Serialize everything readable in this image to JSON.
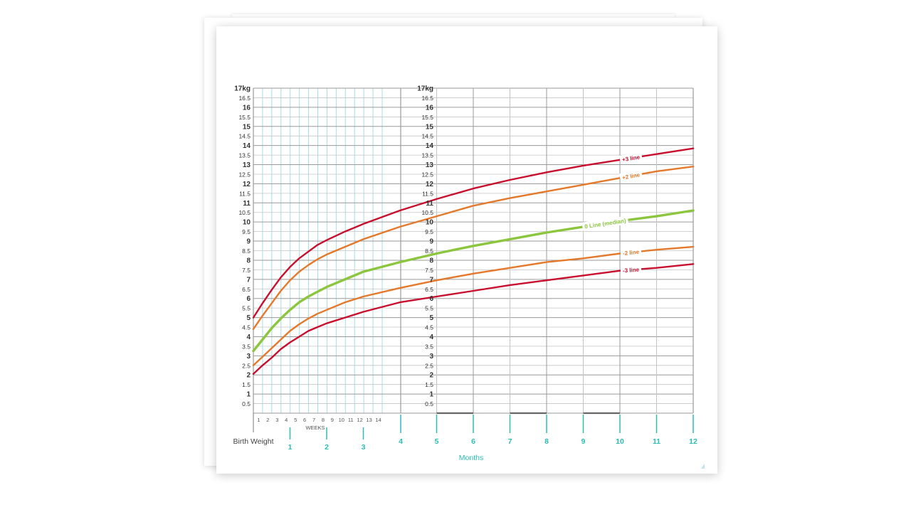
{
  "chart_data": {
    "type": "line",
    "x_unit_labels": {
      "birth": "Birth Weight",
      "weeks_title": "WEEKS",
      "months_title": "Months"
    },
    "week_ticks": [
      "1",
      "2",
      "3",
      "4",
      "5",
      "6",
      "7",
      "8",
      "9",
      "10",
      "11",
      "12",
      "13",
      "14"
    ],
    "month_ticks": [
      "1",
      "2",
      "3",
      "4",
      "5",
      "6",
      "7",
      "8",
      "9",
      "10",
      "11",
      "12"
    ],
    "y_ticks_left": [
      "17kg",
      "16.5",
      "16",
      "15.5",
      "15",
      "14.5",
      "14",
      "13.5",
      "13",
      "12.5",
      "12",
      "11.5",
      "11",
      "10.5",
      "10",
      "9.5",
      "9",
      "8.5",
      "8",
      "7.5",
      "7",
      "6.5",
      "6",
      "5.5",
      "5",
      "4.5",
      "4",
      "3.5",
      "3",
      "2.5",
      "2",
      "1.5",
      "1",
      "0.5"
    ],
    "y_ticks_right": [
      "17kg",
      "16.5",
      "16",
      "15.5",
      "15",
      "14.5",
      "14",
      "13.5",
      "13",
      "12.5",
      "12",
      "11.5",
      "11",
      "10.5",
      "10",
      "9.5",
      "9",
      "8.5",
      "8",
      "7.5",
      "7",
      "6.5",
      "6",
      "5.5",
      "5",
      "4.5",
      "4",
      "3.5",
      "3",
      "2.5",
      "2",
      "1.5",
      "1",
      "0.5"
    ],
    "ylim": [
      0,
      17
    ],
    "xlim_months": [
      0,
      12
    ],
    "grid": true,
    "series": [
      {
        "name": "+3 line",
        "color": "#c8102e",
        "width": 2.4,
        "label_at": 10.3,
        "points": [
          [
            0,
            5.0
          ],
          [
            0.25,
            5.75
          ],
          [
            0.5,
            6.45
          ],
          [
            0.75,
            7.1
          ],
          [
            1,
            7.65
          ],
          [
            1.25,
            8.1
          ],
          [
            1.5,
            8.45
          ],
          [
            1.75,
            8.8
          ],
          [
            2,
            9.05
          ],
          [
            2.5,
            9.5
          ],
          [
            3,
            9.9
          ],
          [
            4,
            10.6
          ],
          [
            5,
            11.2
          ],
          [
            6,
            11.75
          ],
          [
            7,
            12.2
          ],
          [
            8,
            12.6
          ],
          [
            9,
            12.95
          ],
          [
            10,
            13.25
          ],
          [
            11,
            13.55
          ],
          [
            12,
            13.85
          ]
        ]
      },
      {
        "name": "+2 line",
        "color": "#e5792b",
        "width": 2.4,
        "label_at": 10.3,
        "points": [
          [
            0,
            4.4
          ],
          [
            0.25,
            5.1
          ],
          [
            0.5,
            5.75
          ],
          [
            0.75,
            6.4
          ],
          [
            1,
            6.95
          ],
          [
            1.25,
            7.4
          ],
          [
            1.5,
            7.75
          ],
          [
            1.75,
            8.05
          ],
          [
            2,
            8.3
          ],
          [
            2.5,
            8.7
          ],
          [
            3,
            9.1
          ],
          [
            4,
            9.75
          ],
          [
            5,
            10.3
          ],
          [
            6,
            10.85
          ],
          [
            7,
            11.25
          ],
          [
            8,
            11.6
          ],
          [
            9,
            11.95
          ],
          [
            10,
            12.3
          ],
          [
            11,
            12.65
          ],
          [
            12,
            12.9
          ]
        ]
      },
      {
        "name": "0 Line (median)",
        "color": "#8cc63f",
        "width": 3.4,
        "label_at": 9.6,
        "points": [
          [
            0,
            3.25
          ],
          [
            0.25,
            3.85
          ],
          [
            0.5,
            4.45
          ],
          [
            0.75,
            4.95
          ],
          [
            1,
            5.4
          ],
          [
            1.25,
            5.8
          ],
          [
            1.5,
            6.1
          ],
          [
            1.75,
            6.35
          ],
          [
            2,
            6.6
          ],
          [
            2.5,
            7.0
          ],
          [
            3,
            7.4
          ],
          [
            4,
            7.9
          ],
          [
            5,
            8.35
          ],
          [
            6,
            8.75
          ],
          [
            7,
            9.1
          ],
          [
            8,
            9.45
          ],
          [
            9,
            9.75
          ],
          [
            10,
            10.05
          ],
          [
            11,
            10.3
          ],
          [
            12,
            10.6
          ]
        ]
      },
      {
        "name": "-2 line",
        "color": "#e5792b",
        "width": 2.4,
        "label_at": 10.3,
        "points": [
          [
            0,
            2.5
          ],
          [
            0.25,
            2.95
          ],
          [
            0.5,
            3.4
          ],
          [
            0.75,
            3.85
          ],
          [
            1,
            4.3
          ],
          [
            1.25,
            4.65
          ],
          [
            1.5,
            4.95
          ],
          [
            1.75,
            5.2
          ],
          [
            2,
            5.4
          ],
          [
            2.5,
            5.8
          ],
          [
            3,
            6.1
          ],
          [
            4,
            6.55
          ],
          [
            5,
            6.95
          ],
          [
            6,
            7.3
          ],
          [
            7,
            7.6
          ],
          [
            8,
            7.9
          ],
          [
            9,
            8.1
          ],
          [
            10,
            8.35
          ],
          [
            11,
            8.55
          ],
          [
            12,
            8.7
          ]
        ]
      },
      {
        "name": "-3 line",
        "color": "#c8102e",
        "width": 2.4,
        "label_at": 10.3,
        "points": [
          [
            0,
            2.05
          ],
          [
            0.25,
            2.5
          ],
          [
            0.5,
            2.9
          ],
          [
            0.75,
            3.35
          ],
          [
            1,
            3.7
          ],
          [
            1.25,
            4.0
          ],
          [
            1.5,
            4.3
          ],
          [
            1.75,
            4.5
          ],
          [
            2,
            4.7
          ],
          [
            2.5,
            5.0
          ],
          [
            3,
            5.3
          ],
          [
            4,
            5.8
          ],
          [
            5,
            6.1
          ],
          [
            6,
            6.4
          ],
          [
            7,
            6.7
          ],
          [
            8,
            6.95
          ],
          [
            9,
            7.2
          ],
          [
            10,
            7.45
          ],
          [
            11,
            7.6
          ],
          [
            12,
            7.8
          ]
        ]
      }
    ]
  },
  "colors": {
    "teal": "#2bbdb4",
    "grid_dark": "#9a9a9a",
    "grid_light": "#c4c4c4",
    "week_grid": "#a8dde3",
    "axis_text": "#333333"
  }
}
